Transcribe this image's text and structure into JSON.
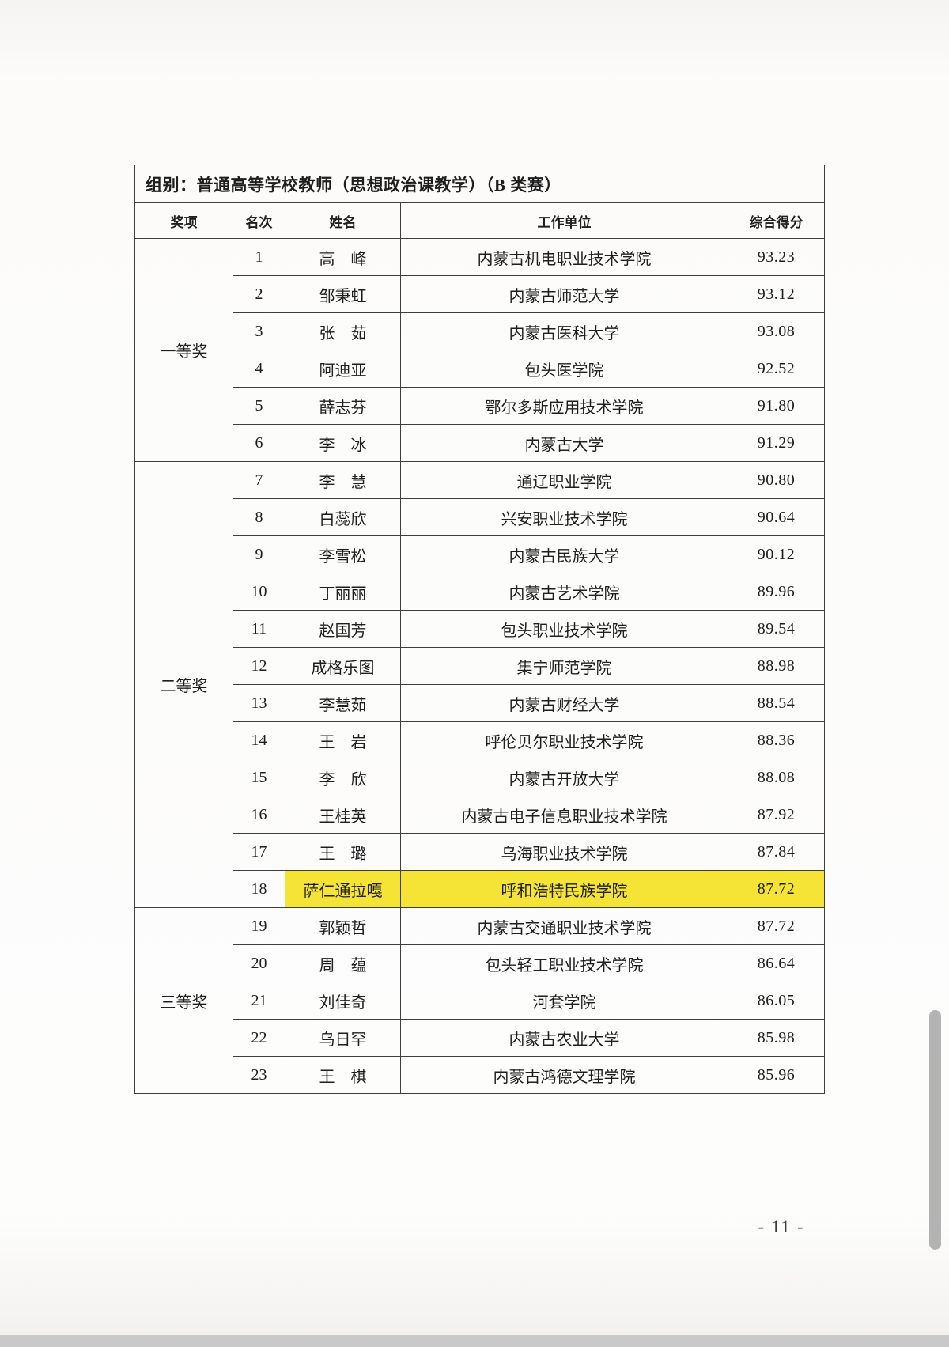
{
  "page": {
    "group_title": "组别：普通高等学校教师（思想政治课教学）（B 类赛）",
    "page_number": "- 11 -"
  },
  "colors": {
    "highlight": "#f5e335",
    "border": "#3e3e3e",
    "scrollbar": "#b3b3b3"
  },
  "table": {
    "columns": [
      "奖项",
      "名次",
      "姓名",
      "工作单位",
      "综合得分"
    ],
    "highlight_rank": "18",
    "sections": [
      {
        "award": "一等奖",
        "rows": [
          {
            "rank": "1",
            "name": "高　峰",
            "unit": "内蒙古机电职业技术学院",
            "score": "93.23"
          },
          {
            "rank": "2",
            "name": "邹秉虹",
            "unit": "内蒙古师范大学",
            "score": "93.12"
          },
          {
            "rank": "3",
            "name": "张　茹",
            "unit": "内蒙古医科大学",
            "score": "93.08"
          },
          {
            "rank": "4",
            "name": "阿迪亚",
            "unit": "包头医学院",
            "score": "92.52"
          },
          {
            "rank": "5",
            "name": "薛志芬",
            "unit": "鄂尔多斯应用技术学院",
            "score": "91.80"
          },
          {
            "rank": "6",
            "name": "李　冰",
            "unit": "内蒙古大学",
            "score": "91.29"
          }
        ]
      },
      {
        "award": "二等奖",
        "rows": [
          {
            "rank": "7",
            "name": "李　慧",
            "unit": "通辽职业学院",
            "score": "90.80"
          },
          {
            "rank": "8",
            "name": "白蕊欣",
            "unit": "兴安职业技术学院",
            "score": "90.64"
          },
          {
            "rank": "9",
            "name": "李雪松",
            "unit": "内蒙古民族大学",
            "score": "90.12"
          },
          {
            "rank": "10",
            "name": "丁丽丽",
            "unit": "内蒙古艺术学院",
            "score": "89.96"
          },
          {
            "rank": "11",
            "name": "赵国芳",
            "unit": "包头职业技术学院",
            "score": "89.54"
          },
          {
            "rank": "12",
            "name": "成格乐图",
            "unit": "集宁师范学院",
            "score": "88.98"
          },
          {
            "rank": "13",
            "name": "李慧茹",
            "unit": "内蒙古财经大学",
            "score": "88.54"
          },
          {
            "rank": "14",
            "name": "王　岩",
            "unit": "呼伦贝尔职业技术学院",
            "score": "88.36"
          },
          {
            "rank": "15",
            "name": "李　欣",
            "unit": "内蒙古开放大学",
            "score": "88.08"
          },
          {
            "rank": "16",
            "name": "王桂英",
            "unit": "内蒙古电子信息职业技术学院",
            "score": "87.92"
          },
          {
            "rank": "17",
            "name": "王　璐",
            "unit": "乌海职业技术学院",
            "score": "87.84"
          },
          {
            "rank": "18",
            "name": "萨仁通拉嘎",
            "unit": "呼和浩特民族学院",
            "score": "87.72"
          }
        ]
      },
      {
        "award": "三等奖",
        "rows": [
          {
            "rank": "19",
            "name": "郭颖哲",
            "unit": "内蒙古交通职业技术学院",
            "score": "87.72"
          },
          {
            "rank": "20",
            "name": "周　蕴",
            "unit": "包头轻工职业技术学院",
            "score": "86.64"
          },
          {
            "rank": "21",
            "name": "刘佳奇",
            "unit": "河套学院",
            "score": "86.05"
          },
          {
            "rank": "22",
            "name": "乌日罕",
            "unit": "内蒙古农业大学",
            "score": "85.98"
          },
          {
            "rank": "23",
            "name": "王　棋",
            "unit": "内蒙古鸿德文理学院",
            "score": "85.96"
          }
        ]
      }
    ]
  }
}
